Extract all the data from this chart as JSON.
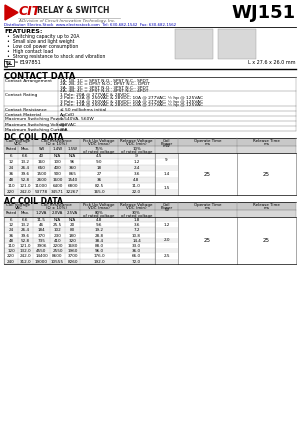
{
  "title": "WJ151",
  "company": "CIT RELAY & SWITCH",
  "subtitle": "A Division of Circuit Innovation Technology, Inc.",
  "distributor": "Distributor: Electro-Stock  www.electrostock.com  Tel: 630-682-1542  Fax: 630-682-1562",
  "cert": "E197851",
  "dimensions": "L x 27.6 x 26.0 mm",
  "features_title": "FEATURES:",
  "features": [
    "Switching capacity up to 20A",
    "Small size and light weight",
    "Low coil power consumption",
    "High contact load",
    "Strong resistance to shock and vibration"
  ],
  "contact_data_title": "CONTACT DATA",
  "contact_rows": [
    [
      "Contact Arrangement",
      "1A, 1B, 1C = SPST N.O., SPST N.C., SPDT\n2A, 2B, 2C = DPST N.O., DPST N.C., DPDT\n3A, 3B, 3C = 3PST N.O., 3PST N.C., 3PDT\n4A, 4B, 4C = 4PST N.O., 4PST N.C., 4PDT"
    ],
    [
      "Contact Rating",
      "1 Pole: 20A @ 277VAC & 28VDC\n2 Pole: 12A @ 250VAC & 28VDC; 10A @ 277VAC; ½ hp @ 125VAC\n3 Pole: 12A @ 250VAC & 28VDC; 10A @ 277VAC; ½ hp @ 125VAC\n4 Pole: 12A @ 250VAC & 28VDC; 10A @ 277VAC; ½ hp @ 125VAC"
    ],
    [
      "Contact Resistance",
      "≤ 50 milliohms initial"
    ],
    [
      "Contact Material",
      "AgCdO"
    ],
    [
      "Maximum Switching Power",
      "1,540VA, 560W"
    ],
    [
      "Maximum Switching Voltage",
      "300VAC"
    ],
    [
      "Maximum Switching Current",
      "20A"
    ]
  ],
  "dc_coil_title": "DC COIL DATA",
  "dc_rows": [
    [
      "6",
      "6.6",
      "40",
      "N/A",
      "N/A",
      "4.5",
      ".9"
    ],
    [
      "12",
      "13.2",
      "160",
      "100",
      "96",
      "9.0",
      "1.2"
    ],
    [
      "24",
      "26.4",
      "650",
      "400",
      "360",
      "18",
      "2.4"
    ],
    [
      "36",
      "39.6",
      "1500",
      "900",
      "865",
      "27",
      "3.6"
    ],
    [
      "48",
      "52.8",
      "2600",
      "1600",
      "1540",
      "36",
      "4.8"
    ],
    [
      "110",
      "121.0",
      "11000",
      "6400",
      "6800",
      "82.5",
      "11.0"
    ],
    [
      "220",
      "242.0",
      "53778",
      "34571",
      "32267",
      "165.0",
      "22.0"
    ]
  ],
  "dc_coil_power": [
    "9",
    "1.4",
    "1.5"
  ],
  "dc_operate": "25",
  "dc_release": "25",
  "ac_coil_title": "AC COIL DATA",
  "ac_rows": [
    [
      "6",
      "6.6",
      "11.5",
      "N/A",
      "N/A",
      "4.8",
      "1.8"
    ],
    [
      "12",
      "13.2",
      "46",
      "25.5",
      "20",
      "9.6",
      "3.6"
    ],
    [
      "24",
      "26.4",
      "184",
      "102",
      "80",
      "19.2",
      "7.2"
    ],
    [
      "36",
      "39.6",
      "370",
      "230",
      "180",
      "28.8",
      "10.8"
    ],
    [
      "48",
      "52.8",
      "735",
      "410",
      "320",
      "38.4",
      "14.4"
    ],
    [
      "110",
      "121.0",
      "3906",
      "2200",
      "1680",
      "88.0",
      "33.0"
    ],
    [
      "120",
      "132.0",
      "4550",
      "2550",
      "1960",
      "96.0",
      "36.0"
    ],
    [
      "220",
      "242.0",
      "14400",
      "8600",
      "3700",
      "176.0",
      "66.0"
    ],
    [
      "240",
      "312.0",
      "19000",
      "10555",
      "8260",
      "192.0",
      "72.0"
    ]
  ],
  "ac_coil_power": [
    "1.2",
    "2.0",
    "2.5"
  ],
  "ac_operate": "25",
  "ac_release": "25",
  "bg_color": "#ffffff",
  "logo_red": "#cc0000",
  "blue_color": "#0000bb",
  "gray_header": "#c8c8c8",
  "gray_subheader": "#d8d8d8",
  "gray_row": "#f0f0f0"
}
